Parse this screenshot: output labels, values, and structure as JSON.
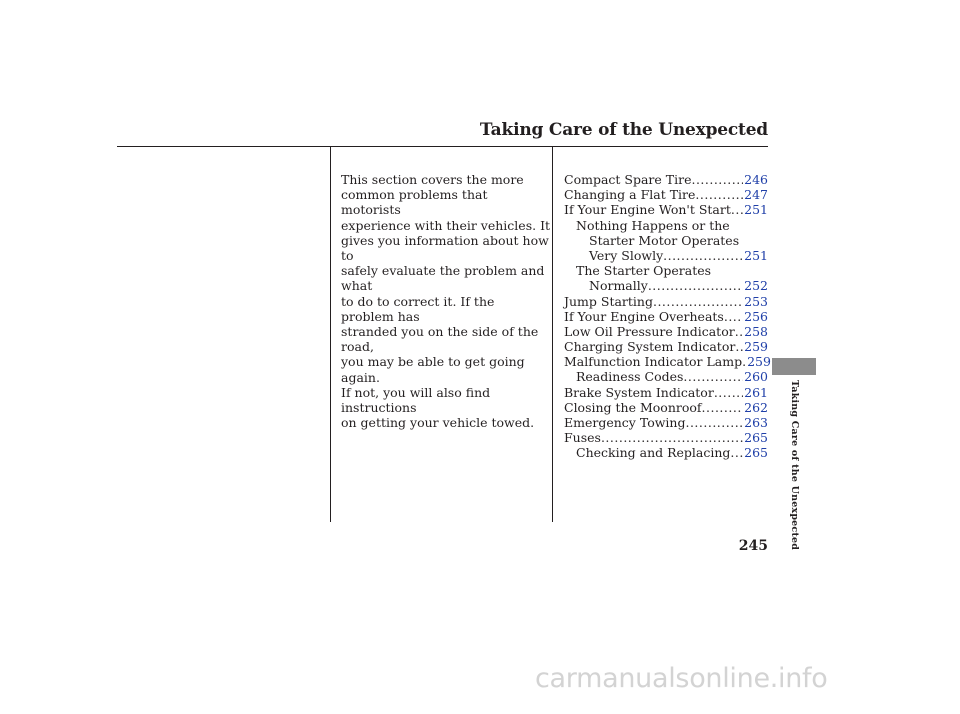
{
  "header": {
    "title": "Taking Care of the Unexpected"
  },
  "intro": {
    "text": "This section covers the more\ncommon problems that motorists\nexperience with their vehicles. It\ngives you information about how to\nsafely evaluate the problem and what\nto do to correct it. If the problem has\nstranded you on the side of the road,\nyou may be able to get going again.\nIf not, you will also find instructions\non getting your vehicle towed."
  },
  "toc": {
    "link_color": "#1f3fa8",
    "entries": [
      {
        "label": "Compact Spare Tire",
        "page": "246"
      },
      {
        "label": "Changing a Flat Tire",
        "page": "247"
      },
      {
        "label": "If Your Engine Won't Start",
        "page": "251"
      },
      {
        "label": "Nothing Happens or the",
        "page": ""
      },
      {
        "label": "Starter Motor Operates",
        "page": ""
      },
      {
        "label": "Very Slowly",
        "page": "251"
      },
      {
        "label": "The Starter Operates",
        "page": ""
      },
      {
        "label": "Normally",
        "page": "252"
      },
      {
        "label": "Jump Starting",
        "page": "253"
      },
      {
        "label": "If Your Engine Overheats",
        "page": "256"
      },
      {
        "label": "Low Oil Pressure Indicator",
        "page": "258"
      },
      {
        "label": "Charging System Indicator",
        "page": "259"
      },
      {
        "label": "Malfunction Indicator Lamp",
        "page": "259"
      },
      {
        "label": "Readiness Codes",
        "page": "260"
      },
      {
        "label": "Brake System Indicator",
        "page": "261"
      },
      {
        "label": "Closing the Moonroof",
        "page": "262"
      },
      {
        "label": "Emergency Towing",
        "page": "263"
      },
      {
        "label": "Fuses",
        "page": "265"
      },
      {
        "label": "Checking and Replacing",
        "page": "265"
      }
    ]
  },
  "side_tab": {
    "label": "Taking Care of the Unexpected",
    "color": "#8c8c8c"
  },
  "footer": {
    "page_number": "245",
    "watermark": "carmanualsonline.info"
  }
}
